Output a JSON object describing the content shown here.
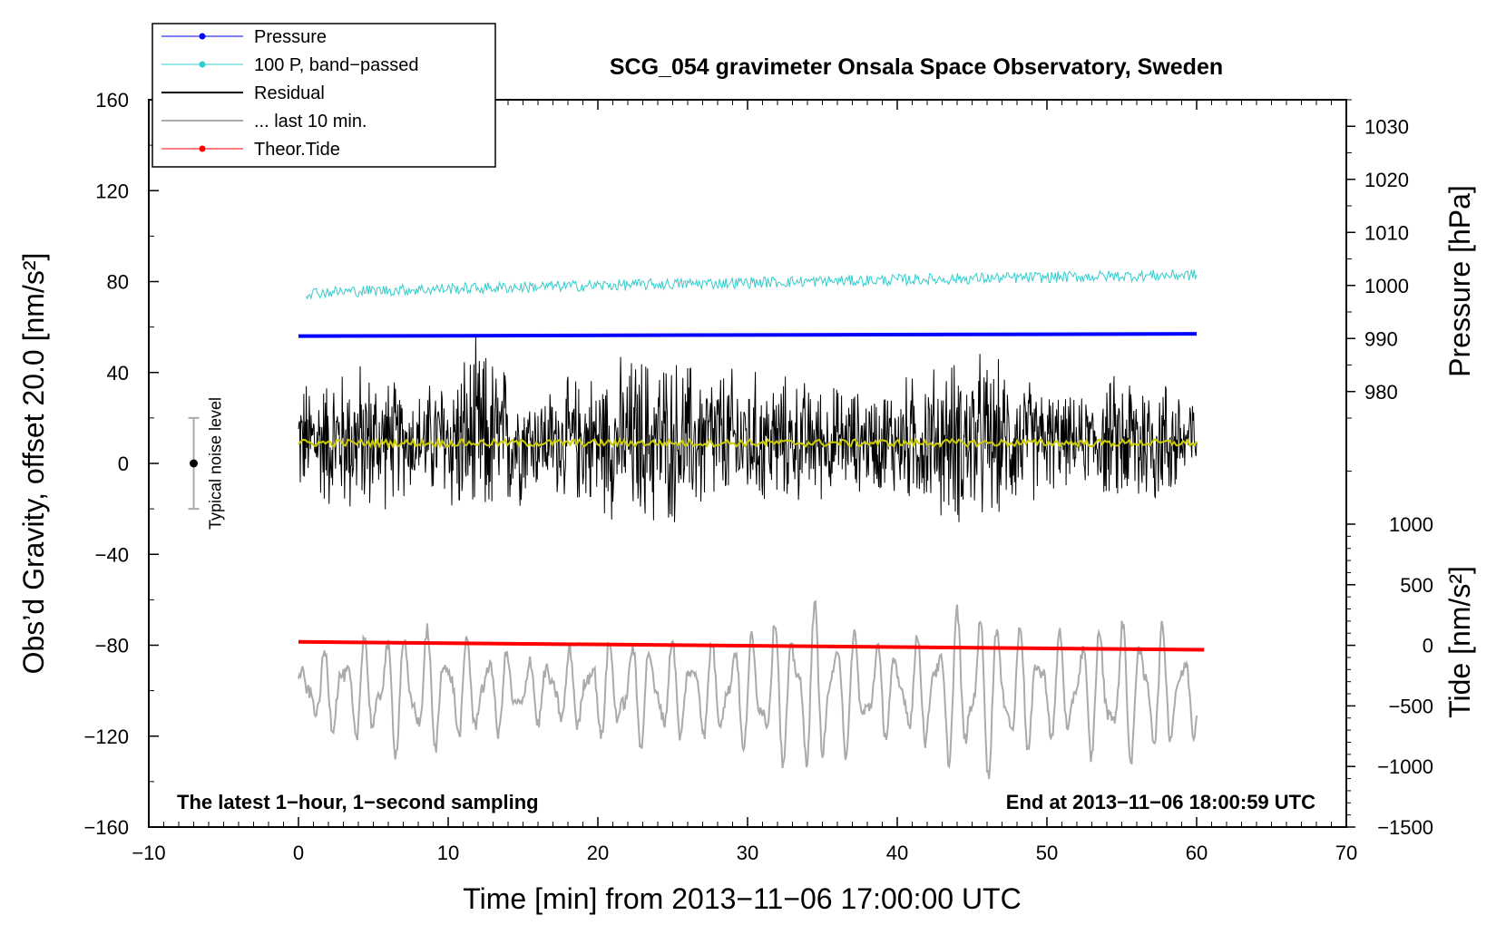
{
  "chart_data": {
    "type": "line",
    "title": "SCG_054 gravimeter Onsala Space Observatory, Sweden",
    "xlabel": "Time [min] from 2013−11−06 17:00:00 UTC",
    "ylabel": "Obs’d Gravity, offset 20.0 [nm/s²]",
    "xlim": [
      -10,
      70
    ],
    "ylim": [
      -160,
      160
    ],
    "x_ticks": [
      -10,
      0,
      10,
      20,
      30,
      40,
      50,
      60,
      70
    ],
    "x_tick_labels": [
      "−10",
      "0",
      "10",
      "20",
      "30",
      "40",
      "50",
      "60",
      "70"
    ],
    "y_ticks": [
      160,
      120,
      80,
      40,
      0,
      -40,
      -80,
      -120,
      -160
    ],
    "y_tick_labels": [
      "160",
      "120",
      "80",
      "40",
      "0",
      "−40",
      "−80",
      "−120",
      "−160"
    ],
    "pressure_axis": {
      "label": "Pressure [hPa]",
      "ticks": [
        1030,
        1020,
        1010,
        1000,
        990,
        980
      ],
      "tick_labels": [
        "1030",
        "1020",
        "1010",
        "1000",
        "990",
        "980"
      ],
      "range": [
        955,
        1035
      ]
    },
    "tide_axis": {
      "label": "Tide [nm/s²]",
      "ticks": [
        1000,
        500,
        0,
        -500,
        -1000,
        -1500
      ],
      "tick_labels": [
        "1000",
        "500",
        "0",
        "−500",
        "−1000",
        "−1500"
      ],
      "range": [
        -1500,
        1000
      ]
    },
    "legend": [
      {
        "name": "Pressure",
        "color": "#0000ff",
        "marker": true
      },
      {
        "name": "100 P, band−passed",
        "color": "#33cccc",
        "marker": true
      },
      {
        "name": "Residual",
        "color": "#000000",
        "marker": false
      },
      {
        "name": "... last 10 min.",
        "color": "#aaaaaa",
        "marker": false
      },
      {
        "name": "Theor.Tide",
        "color": "#ff0000",
        "marker": true
      }
    ],
    "series": [
      {
        "name": "Pressure",
        "axis": "left",
        "color": "#0000ff",
        "x": [
          0,
          60
        ],
        "y": [
          56,
          57
        ]
      },
      {
        "name": "100 P, band−passed",
        "axis": "left",
        "color": "#33cccc",
        "x": [
          0.5,
          60
        ],
        "y": [
          75,
          83
        ],
        "noise_amplitude": 2.5
      },
      {
        "name": "Residual",
        "axis": "left",
        "color": "#000000",
        "x": [
          0,
          60
        ],
        "y_center": 10,
        "envelope_approx": [
          [
            0,
            30
          ],
          [
            4,
            40
          ],
          [
            8,
            25
          ],
          [
            12,
            50
          ],
          [
            16,
            25
          ],
          [
            23,
            45
          ],
          [
            30,
            35
          ],
          [
            38,
            25
          ],
          [
            45,
            45
          ],
          [
            52,
            20
          ],
          [
            56,
            40
          ],
          [
            60,
            25
          ]
        ]
      },
      {
        "name": "Residual smoothed",
        "axis": "left",
        "color": "#cccc00",
        "x": [
          0,
          60
        ],
        "y": [
          9,
          9
        ]
      },
      {
        "name": "... last 10 min.",
        "axis": "left",
        "color": "#aaaaaa",
        "x": [
          0,
          60
        ],
        "y_center": -100,
        "amplitude_approx": [
          [
            0,
            12
          ],
          [
            4,
            25
          ],
          [
            8,
            30
          ],
          [
            16,
            15
          ],
          [
            22,
            25
          ],
          [
            28,
            22
          ],
          [
            34,
            40
          ],
          [
            40,
            18
          ],
          [
            45,
            42
          ],
          [
            50,
            25
          ],
          [
            56,
            35
          ],
          [
            60,
            20
          ]
        ]
      },
      {
        "name": "Theor.Tide",
        "axis": "left",
        "color": "#ff0000",
        "x": [
          0,
          60.5
        ],
        "y": [
          -78.5,
          -82
        ]
      }
    ],
    "noise_bar": {
      "label": "Typical noise level",
      "x": -7,
      "center": 0,
      "half_range": 20
    },
    "footer_left": "The latest 1−hour, 1−second sampling",
    "footer_right": "End at 2013−11−06 18:00:59 UTC"
  }
}
